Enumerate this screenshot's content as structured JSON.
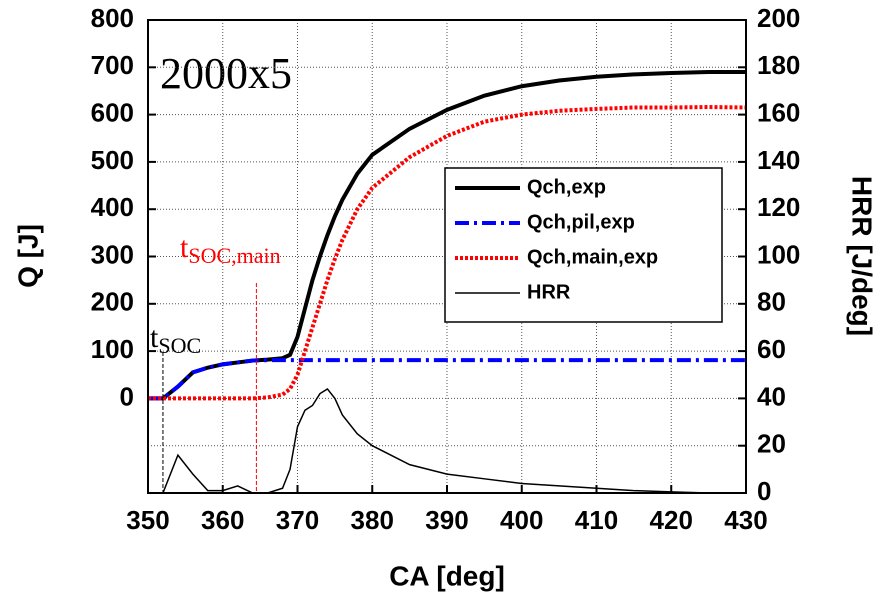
{
  "chart_data": {
    "type": "line",
    "x_label": "CA [deg]",
    "y_label": "Q [J]",
    "y2_label": "HRR [J/deg]",
    "annotation": "2000x5",
    "markers": [
      {
        "text": "t",
        "subscript": "SOC",
        "x": 352,
        "color": "#000000"
      },
      {
        "text": "t",
        "subscript": "SOC,main",
        "x": 364.5,
        "color": "#ff0000"
      }
    ],
    "x": [
      350,
      352,
      354,
      356,
      358,
      360,
      362,
      364,
      366,
      368,
      369,
      370,
      371,
      372,
      373,
      374,
      375,
      376,
      378,
      380,
      385,
      390,
      395,
      400,
      405,
      410,
      415,
      420,
      425,
      430
    ],
    "series": [
      {
        "name": "Qch,exp",
        "color": "#000000",
        "style": "solid",
        "width": 4,
        "values": [
          0,
          0,
          25,
          55,
          65,
          72,
          76,
          80,
          82,
          85,
          92,
          130,
          190,
          250,
          300,
          345,
          385,
          420,
          475,
          515,
          570,
          610,
          640,
          660,
          672,
          680,
          685,
          688,
          690,
          690
        ]
      },
      {
        "name": "Qch,pil,exp",
        "color": "#0000ff",
        "style": "dashdot",
        "width": 4,
        "values": [
          0,
          0,
          25,
          55,
          65,
          72,
          76,
          80,
          81,
          81,
          81,
          81,
          81,
          81,
          81,
          81,
          81,
          81,
          81,
          81,
          81,
          81,
          81,
          81,
          81,
          81,
          81,
          81,
          81,
          81
        ]
      },
      {
        "name": "Qch,main,exp",
        "color": "#ff0000",
        "style": "dotted",
        "width": 4,
        "values": [
          0,
          0,
          0,
          0,
          0,
          0,
          0,
          0,
          2,
          8,
          20,
          50,
          100,
          150,
          200,
          250,
          295,
          335,
          400,
          445,
          510,
          555,
          585,
          600,
          608,
          612,
          615,
          615,
          616,
          615
        ]
      },
      {
        "name": "HRR",
        "color": "#000000",
        "style": "solid",
        "width": 1.5,
        "axis": "y2",
        "values": [
          0,
          0,
          16,
          8,
          1,
          1,
          3,
          0,
          0,
          2,
          10,
          28,
          35,
          37,
          42,
          44,
          40,
          33,
          25,
          20,
          12,
          8,
          6,
          4,
          3,
          2,
          1,
          0.5,
          0,
          0
        ]
      }
    ],
    "xlim": [
      350,
      430
    ],
    "xticks": [
      350,
      360,
      370,
      380,
      390,
      400,
      410,
      420,
      430
    ],
    "ylim": [
      -200,
      800
    ],
    "yticks": [
      0,
      100,
      200,
      300,
      400,
      500,
      600,
      700,
      800
    ],
    "y2lim": [
      0,
      200
    ],
    "y2ticks": [
      0,
      20,
      40,
      60,
      80,
      100,
      120,
      140,
      160,
      180,
      200
    ],
    "grid": true,
    "legend": "center right"
  }
}
